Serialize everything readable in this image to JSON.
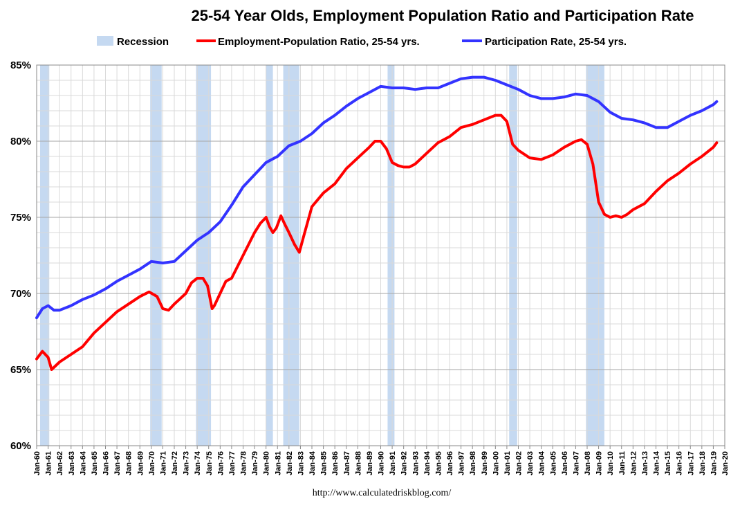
{
  "chart_data": {
    "type": "line",
    "title": "25-54 Year Olds, Employment Population Ratio and Participation Rate",
    "source": "http://www.calculatedriskblog.com/",
    "xlabel": "",
    "ylabel": "",
    "x_range": [
      1960,
      2020
    ],
    "ylim": [
      60,
      85
    ],
    "yticks": [
      60,
      65,
      70,
      75,
      80,
      85
    ],
    "ytick_labels": [
      "60%",
      "65%",
      "70%",
      "75%",
      "80%",
      "85%"
    ],
    "xtick_labels": [
      "Jan-60",
      "Jan-61",
      "Jan-62",
      "Jan-63",
      "Jan-64",
      "Jan-65",
      "Jan-66",
      "Jan-67",
      "Jan-68",
      "Jan-69",
      "Jan-70",
      "Jan-71",
      "Jan-72",
      "Jan-73",
      "Jan-74",
      "Jan-75",
      "Jan-76",
      "Jan-77",
      "Jan-78",
      "Jan-79",
      "Jan-80",
      "Jan-81",
      "Jan-82",
      "Jan-83",
      "Jan-84",
      "Jan-85",
      "Jan-86",
      "Jan-87",
      "Jan-88",
      "Jan-89",
      "Jan-90",
      "Jan-91",
      "Jan-92",
      "Jan-93",
      "Jan-94",
      "Jan-95",
      "Jan-96",
      "Jan-97",
      "Jan-98",
      "Jan-99",
      "Jan-00",
      "Jan-01",
      "Jan-02",
      "Jan-03",
      "Jan-04",
      "Jan-05",
      "Jan-06",
      "Jan-07",
      "Jan-08",
      "Jan-09",
      "Jan-10",
      "Jan-11",
      "Jan-12",
      "Jan-13",
      "Jan-14",
      "Jan-15",
      "Jan-16",
      "Jan-17",
      "Jan-18",
      "Jan-19",
      "Jan-20"
    ],
    "grid": true,
    "legend_position": "top-center",
    "recessions": [
      {
        "start": 1960.3,
        "end": 1961.1
      },
      {
        "start": 1969.9,
        "end": 1970.9
      },
      {
        "start": 1973.9,
        "end": 1975.2
      },
      {
        "start": 1980.0,
        "end": 1980.6
      },
      {
        "start": 1981.5,
        "end": 1982.9
      },
      {
        "start": 1990.6,
        "end": 1991.2
      },
      {
        "start": 2001.2,
        "end": 2001.9
      },
      {
        "start": 2007.9,
        "end": 2009.5
      }
    ],
    "series": [
      {
        "name": "Employment-Population Ratio, 25-54 yrs.",
        "color": "#ff0000",
        "x": [
          1960.0,
          1960.5,
          1961.0,
          1961.3,
          1962.0,
          1963.0,
          1964.0,
          1965.0,
          1966.0,
          1967.0,
          1968.0,
          1969.0,
          1969.8,
          1970.5,
          1971.0,
          1971.5,
          1972.0,
          1973.0,
          1973.5,
          1974.0,
          1974.5,
          1974.9,
          1975.3,
          1975.5,
          1976.0,
          1976.5,
          1977.0,
          1978.0,
          1979.0,
          1979.5,
          1980.0,
          1980.3,
          1980.6,
          1980.9,
          1981.3,
          1981.6,
          1982.0,
          1982.5,
          1982.9,
          1983.3,
          1984.0,
          1985.0,
          1986.0,
          1987.0,
          1988.0,
          1989.0,
          1989.5,
          1990.0,
          1990.5,
          1991.0,
          1991.5,
          1992.0,
          1992.5,
          1993.0,
          1994.0,
          1995.0,
          1996.0,
          1997.0,
          1998.0,
          1999.0,
          2000.0,
          2000.5,
          2001.0,
          2001.5,
          2002.0,
          2003.0,
          2004.0,
          2005.0,
          2006.0,
          2007.0,
          2007.5,
          2008.0,
          2008.5,
          2009.0,
          2009.5,
          2010.0,
          2010.5,
          2011.0,
          2011.5,
          2012.0,
          2013.0,
          2014.0,
          2015.0,
          2016.0,
          2017.0,
          2018.0,
          2019.0,
          2019.3
        ],
        "values": [
          65.7,
          66.2,
          65.8,
          65.0,
          65.5,
          66.0,
          66.5,
          67.4,
          68.1,
          68.8,
          69.3,
          69.8,
          70.1,
          69.8,
          69.0,
          68.9,
          69.3,
          70.0,
          70.7,
          71.0,
          71.0,
          70.5,
          69.0,
          69.2,
          70.0,
          70.8,
          71.0,
          72.5,
          74.0,
          74.6,
          75.0,
          74.4,
          74.0,
          74.3,
          75.1,
          74.6,
          74.0,
          73.2,
          72.7,
          73.8,
          75.7,
          76.6,
          77.2,
          78.2,
          78.9,
          79.6,
          80.0,
          80.0,
          79.5,
          78.6,
          78.4,
          78.3,
          78.3,
          78.5,
          79.2,
          79.9,
          80.3,
          80.9,
          81.1,
          81.4,
          81.7,
          81.7,
          81.3,
          79.8,
          79.4,
          78.9,
          78.8,
          79.1,
          79.6,
          80.0,
          80.1,
          79.8,
          78.5,
          76.0,
          75.2,
          75.0,
          75.1,
          75.0,
          75.2,
          75.5,
          75.9,
          76.7,
          77.4,
          77.9,
          78.5,
          79.0,
          79.6,
          79.9
        ]
      },
      {
        "name": "Participation Rate, 25-54 yrs.",
        "color": "#3333ff",
        "x": [
          1960.0,
          1960.5,
          1961.0,
          1961.5,
          1962.0,
          1963.0,
          1964.0,
          1965.0,
          1966.0,
          1967.0,
          1968.0,
          1969.0,
          1970.0,
          1971.0,
          1972.0,
          1973.0,
          1974.0,
          1975.0,
          1976.0,
          1977.0,
          1978.0,
          1979.0,
          1980.0,
          1981.0,
          1982.0,
          1983.0,
          1984.0,
          1985.0,
          1986.0,
          1987.0,
          1988.0,
          1989.0,
          1990.0,
          1991.0,
          1992.0,
          1993.0,
          1994.0,
          1995.0,
          1996.0,
          1997.0,
          1998.0,
          1999.0,
          2000.0,
          2001.0,
          2002.0,
          2003.0,
          2004.0,
          2005.0,
          2006.0,
          2007.0,
          2008.0,
          2009.0,
          2010.0,
          2011.0,
          2012.0,
          2013.0,
          2014.0,
          2015.0,
          2016.0,
          2017.0,
          2018.0,
          2019.0,
          2019.3
        ],
        "values": [
          68.4,
          69.0,
          69.2,
          68.9,
          68.9,
          69.2,
          69.6,
          69.9,
          70.3,
          70.8,
          71.2,
          71.6,
          72.1,
          72.0,
          72.1,
          72.8,
          73.5,
          74.0,
          74.7,
          75.8,
          77.0,
          77.8,
          78.6,
          79.0,
          79.7,
          80.0,
          80.5,
          81.2,
          81.7,
          82.3,
          82.8,
          83.2,
          83.6,
          83.5,
          83.5,
          83.4,
          83.5,
          83.5,
          83.8,
          84.1,
          84.2,
          84.2,
          84.0,
          83.7,
          83.4,
          83.0,
          82.8,
          82.8,
          82.9,
          83.1,
          83.0,
          82.6,
          81.9,
          81.5,
          81.4,
          81.2,
          80.9,
          80.9,
          81.3,
          81.7,
          82.0,
          82.4,
          82.6
        ]
      }
    ]
  }
}
